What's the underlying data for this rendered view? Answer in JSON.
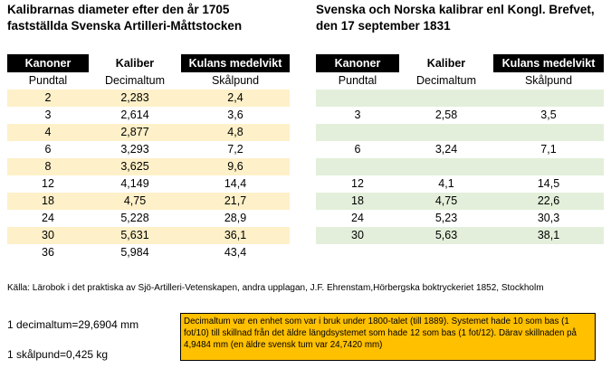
{
  "left": {
    "title_line1": "Kalibrarnas diameter efter den år 1705",
    "title_line2": "fastställda Svenska Artilleri-Måttstocken",
    "headers": [
      "Kanoner",
      "Kaliber",
      "Kulans medelvikt"
    ],
    "units": [
      "Pundtal",
      "Decimaltum",
      "Skålpund"
    ],
    "rows": [
      [
        "2",
        "2,283",
        "2,4"
      ],
      [
        "3",
        "2,614",
        "3,6"
      ],
      [
        "4",
        "2,877",
        "4,8"
      ],
      [
        "6",
        "3,293",
        "7,2"
      ],
      [
        "8",
        "3,625",
        "9,6"
      ],
      [
        "12",
        "4,149",
        "14,4"
      ],
      [
        "18",
        "4,75",
        "21,7"
      ],
      [
        "24",
        "5,228",
        "28,9"
      ],
      [
        "30",
        "5,631",
        "36,1"
      ],
      [
        "36",
        "5,984",
        "43,4"
      ]
    ]
  },
  "right": {
    "title_line1": "Svenska och Norska kalibrar enl Kongl. Brefvet,",
    "title_line2": "den 17 september 1831",
    "headers": [
      "Kanoner",
      "Kaliber",
      "Kulans medelvikt"
    ],
    "units": [
      "Pundtal",
      "Decimaltum",
      "Skålpund"
    ],
    "rows": [
      [
        "",
        "",
        ""
      ],
      [
        "3",
        "2,58",
        "3,5"
      ],
      [
        "",
        "",
        ""
      ],
      [
        "6",
        "3,24",
        "7,1"
      ],
      [
        "",
        "",
        ""
      ],
      [
        "12",
        "4,1",
        "14,5"
      ],
      [
        "18",
        "4,75",
        "22,6"
      ],
      [
        "24",
        "5,23",
        "30,3"
      ],
      [
        "30",
        "5,63",
        "38,1"
      ],
      [
        "",
        "",
        ""
      ]
    ]
  },
  "source": "Källa: Lärobok i det praktiska av Sjö-Artilleri-Vetenskapen, andra upplagan, J.F. Ehrenstam,Hörbergska boktryckeriet 1852, Stockholm",
  "note1": "1 decimaltum=29,6904 mm",
  "note2": "1 skålpund=0,425 kg",
  "box_text": "Decimaltum var en enhet som var i bruk under 1800-talet (till 1889). Systemet hade 10 som bas (1 fot/10) till skillnad från det äldre längdsystemet som hade 12 som bas (1 fot/12). Därav skillnaden på 4,9484  mm (en äldre svensk tum var 24,7420 mm)",
  "colors": {
    "header_bg": "#000000",
    "left_stripe": "#fef0c8",
    "right_stripe": "#e3efda",
    "box_bg": "#ffc000"
  }
}
